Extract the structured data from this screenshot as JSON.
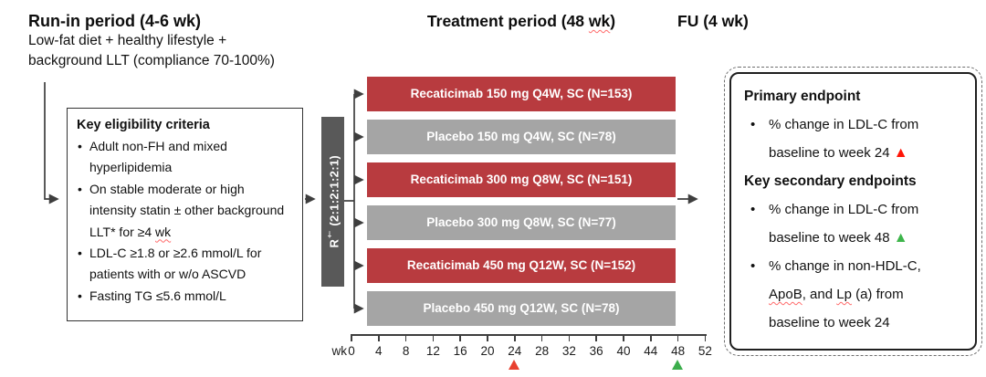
{
  "runin": {
    "title": "Run-in period (4-6 wk)",
    "line1": "Low-fat diet + healthy lifestyle +",
    "line2": "background LLT (compliance 70-100%)"
  },
  "treatment": {
    "title_pre": "Treatment period (48 ",
    "title_wk": "wk",
    "title_post": ")"
  },
  "fu": {
    "title": "FU (4 wk)"
  },
  "eligibility": {
    "title": "Key eligibility criteria",
    "bullet": "•",
    "items": [
      [
        {
          "t": "Adult non-FH and mixed hyperlipidemia"
        }
      ],
      [
        {
          "t": "On stable moderate or high intensity statin ± other background LLT* for ≥4 "
        },
        {
          "t": "wk",
          "sq": true
        }
      ],
      [
        {
          "t": "LDL-C ≥1.8 or ≥2.6 mmol/L for patients with or w/o ASCVD"
        }
      ],
      [
        {
          "t": "Fasting TG ≤5.6 mmol/L"
        }
      ]
    ]
  },
  "randomization": {
    "r": "R",
    "dagger": "†",
    "ratio": " (2:1:2:1:2:1)"
  },
  "arms": [
    {
      "label": "Recaticimab 150 mg Q4W, SC (N=153)",
      "type": "drug"
    },
    {
      "label": "Placebo 150 mg Q4W, SC (N=78)",
      "type": "placebo"
    },
    {
      "label": "Recaticimab 300 mg Q8W, SC (N=151)",
      "type": "drug"
    },
    {
      "label": "Placebo 300 mg Q8W, SC (N=77)",
      "type": "placebo"
    },
    {
      "label": "Recaticimab 450 mg Q12W, SC (N=152)",
      "type": "drug"
    },
    {
      "label": "Placebo 450 mg Q12W, SC (N=78)",
      "type": "placebo"
    }
  ],
  "axis": {
    "unit_label": "wk",
    "ticks": [
      0,
      4,
      8,
      12,
      16,
      20,
      24,
      28,
      32,
      36,
      40,
      44,
      48,
      52
    ],
    "markers": [
      {
        "week": 24,
        "color": "#e8402f",
        "name": "week-24-marker"
      },
      {
        "week": 48,
        "color": "#3bad4b",
        "name": "week-48-marker"
      }
    ]
  },
  "endpoints": {
    "primary_title": "Primary endpoint",
    "secondary_title": "Key secondary endpoints",
    "bullet": "•",
    "primary_items": [
      {
        "lines": [
          [
            {
              "t": "% change in LDL-C from"
            }
          ],
          [
            {
              "t": "baseline to week 24 "
            },
            {
              "tri": "#ff1507"
            }
          ]
        ]
      }
    ],
    "secondary_items": [
      {
        "lines": [
          [
            {
              "t": "% change in LDL-C from"
            }
          ],
          [
            {
              "t": "baseline to week 48 "
            },
            {
              "tri": "#3db54a"
            }
          ]
        ]
      },
      {
        "lines": [
          [
            {
              "t": "% change in non-HDL-C,"
            }
          ],
          [
            {
              "t": "ApoB",
              "sq": true
            },
            {
              "t": ", and "
            },
            {
              "t": "Lp",
              "sq": true
            },
            {
              "t": " (a) from"
            }
          ],
          [
            {
              "t": "baseline to week 24"
            }
          ]
        ]
      }
    ]
  },
  "icons": {
    "endpoint_marker": "▲"
  },
  "colors": {
    "drug_bar": "#b83b3f",
    "placebo_bar": "#a5a5a5",
    "rand_bar": "#595959",
    "connector": "#3e3e3e"
  }
}
